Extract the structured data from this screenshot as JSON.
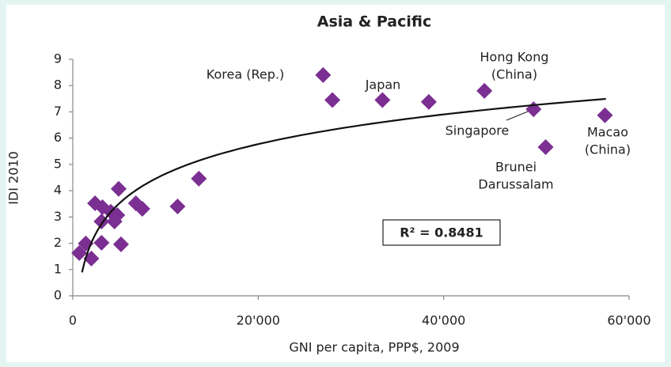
{
  "chart_data": {
    "type": "scatter",
    "title": "Asia & Pacific",
    "x_label": "GNI per capita, PPP$, 2009",
    "y_label": "IDI 2010",
    "color": "#7b2f92",
    "x": [
      27000,
      28000,
      33400,
      38400,
      44400,
      49700,
      57400,
      51000,
      13600,
      11300,
      4950,
      2400,
      3200,
      4100,
      4800,
      3100,
      4500,
      6800,
      7500,
      1400,
      3100,
      5200,
      700,
      2000
    ],
    "values": [
      8.4,
      7.45,
      7.45,
      7.38,
      7.8,
      7.1,
      6.87,
      5.66,
      4.46,
      3.4,
      4.07,
      3.52,
      3.37,
      3.2,
      3.07,
      2.83,
      2.83,
      3.52,
      3.31,
      1.99,
      2.02,
      1.96,
      1.63,
      1.42
    ],
    "xlim": [
      0,
      60000
    ],
    "ylim": [
      0,
      9
    ],
    "xticks": [
      0,
      {
        "value": 20000,
        "label": "20'000"
      },
      {
        "value": 40000,
        "label": "40'000"
      },
      {
        "value": 60000,
        "label": "60'000"
      }
    ],
    "yticks": [
      0,
      1,
      2,
      3,
      4,
      5,
      6,
      7,
      8,
      9
    ],
    "trendline": {
      "type": "log",
      "a": 1.63,
      "b": -10.37,
      "x_range": [
        1000,
        57500
      ],
      "label": "R² = 0.8481"
    },
    "annotations": [
      {
        "lines": [
          "Korea (Rep.)"
        ]
      },
      {
        "lines": [
          "Japan"
        ]
      },
      {
        "lines": [
          "Hong Kong",
          "(China)"
        ]
      },
      {
        "lines": [
          "Singapore"
        ]
      },
      {
        "lines": [
          "Macao",
          "(China)"
        ]
      },
      {
        "lines": [
          "Brunei",
          "Darussalam"
        ]
      }
    ]
  }
}
